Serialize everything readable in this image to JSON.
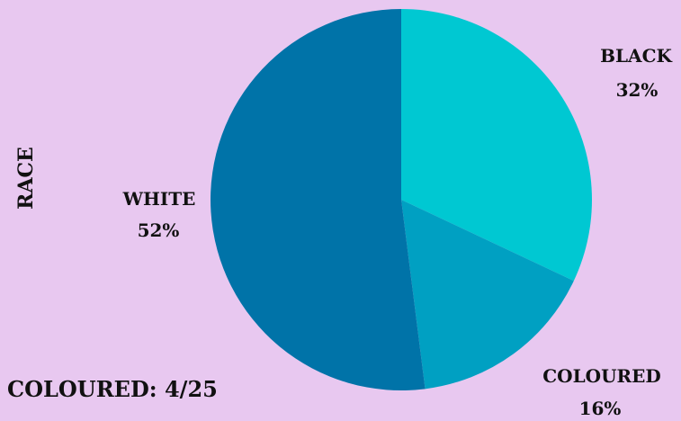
{
  "chart_data": {
    "type": "pie",
    "ylabel": "RACE",
    "slices": [
      {
        "label": "BLACK",
        "value": 32,
        "value_label": "32%",
        "color": "#00c8d2"
      },
      {
        "label": "COLOURED",
        "value": 16,
        "value_label": "16%",
        "color": "#00a0c2"
      },
      {
        "label": "WHITE",
        "value": 52,
        "value_label": "52%",
        "color": "#0073a8"
      }
    ],
    "start_angle": "12 o'clock",
    "direction": "clockwise",
    "legend": "none"
  },
  "footnote": "COLOURED: 4/25",
  "colors": {
    "background": "#e8c8f0",
    "text": "#111111"
  }
}
